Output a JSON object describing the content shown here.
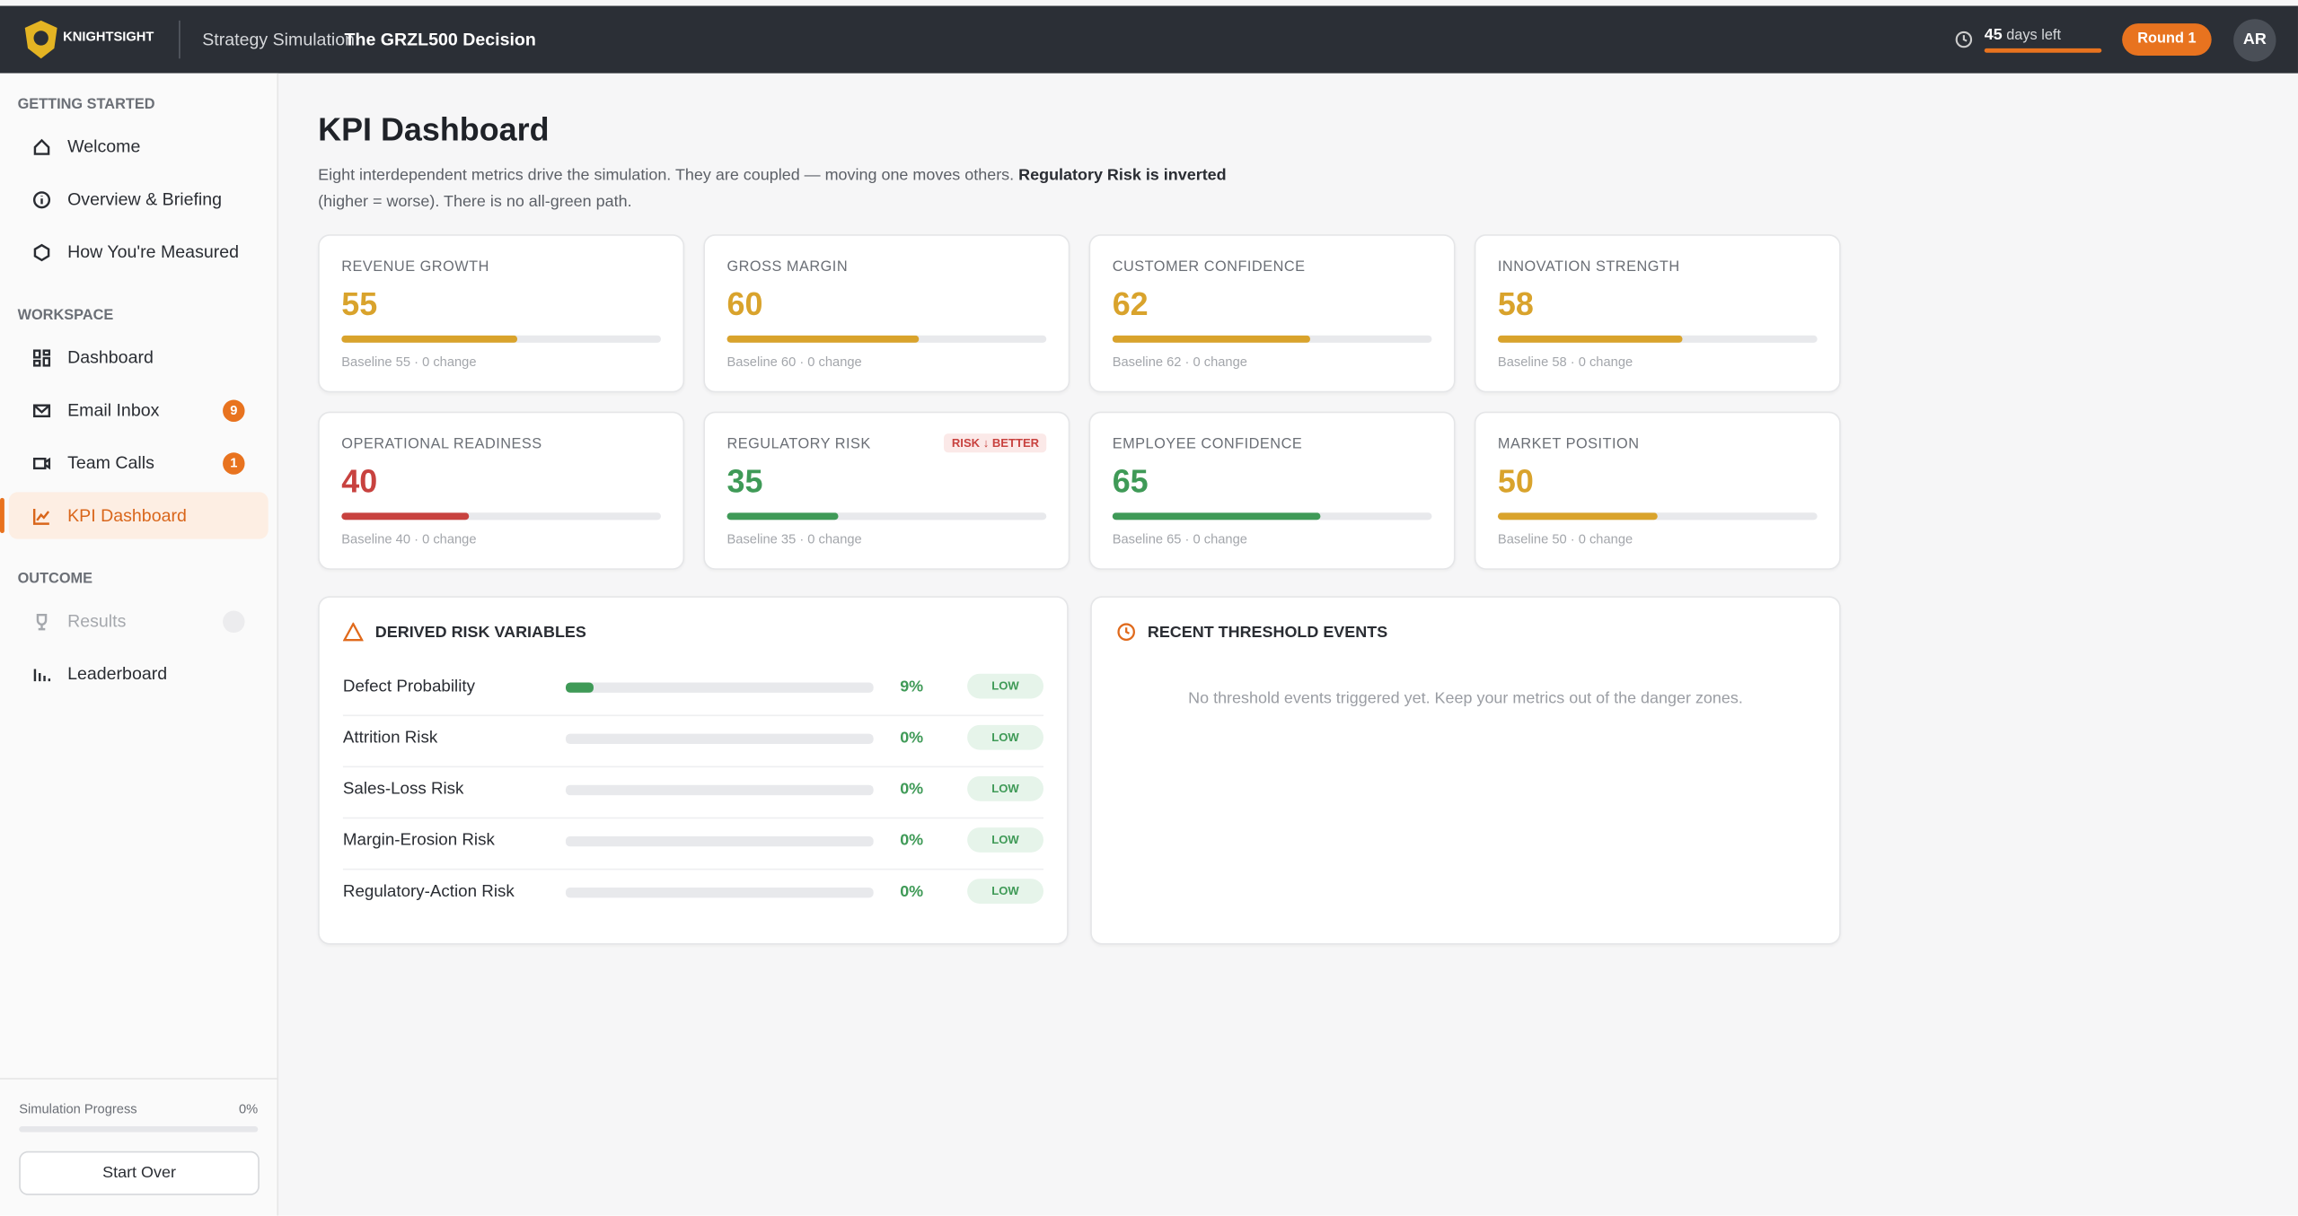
{
  "header": {
    "brand": "KNIGHTSIGHT",
    "title_prefix": "Strategy Simulation:",
    "title": "The GRZL500 Decision",
    "days": "45",
    "days_label": "days left",
    "round": "Round 1",
    "avatar": "AR"
  },
  "sidebar": {
    "sections": [
      {
        "heading": "GETTING STARTED",
        "items": [
          {
            "label": "Welcome"
          },
          {
            "label": "Overview & Briefing"
          },
          {
            "label": "How You're Measured"
          }
        ]
      },
      {
        "heading": "WORKSPACE",
        "items": [
          {
            "label": "Dashboard"
          },
          {
            "label": "Email Inbox",
            "badge": "9"
          },
          {
            "label": "Team Calls",
            "badge": "1"
          },
          {
            "label": "KPI Dashboard"
          }
        ]
      },
      {
        "heading": "OUTCOME",
        "items": [
          {
            "label": "Results"
          },
          {
            "label": "Leaderboard"
          }
        ]
      }
    ],
    "progress_label": "Simulation Progress",
    "progress": "0%",
    "start_over": "Start Over"
  },
  "main": {
    "title": "KPI Dashboard",
    "description": "Eight interdependent metrics drive the simulation. They are coupled — moving one moves others.",
    "description_bold": "Regulatory Risk is inverted",
    "description_end": "(higher = worse). There is no all-green path.",
    "kpis": [
      {
        "name": "REVENUE GROWTH",
        "value": 55,
        "baseline": "Baseline 55 · 0 change",
        "color": "#d9a32c"
      },
      {
        "name": "GROSS MARGIN",
        "value": 60,
        "baseline": "Baseline 60 · 0 change",
        "color": "#d9a32c"
      },
      {
        "name": "CUSTOMER CONFIDENCE",
        "value": 62,
        "baseline": "Baseline 62 · 0 change",
        "color": "#d9a32c"
      },
      {
        "name": "INNOVATION STRENGTH",
        "value": 58,
        "baseline": "Baseline 58 · 0 change",
        "color": "#d9a32c"
      },
      {
        "name": "OPERATIONAL READINESS",
        "value": 40,
        "baseline": "Baseline 40 · 0 change",
        "color": "#c8423f"
      },
      {
        "name": "REGULATORY RISK",
        "value": 35,
        "baseline": "Baseline 35 · 0 change",
        "color": "#3f9a57",
        "tag": "RISK ↓ BETTER"
      },
      {
        "name": "EMPLOYEE CONFIDENCE",
        "value": 65,
        "baseline": "Baseline 65 · 0 change",
        "color": "#3f9a57"
      },
      {
        "name": "MARKET POSITION",
        "value": 50,
        "baseline": "Baseline 50 · 0 change",
        "color": "#d9a32c"
      }
    ],
    "risk_title": "DERIVED RISK VARIABLES",
    "risks": [
      {
        "name": "Defect Probability",
        "value": 9,
        "label": "9%",
        "level": "LOW"
      },
      {
        "name": "Attrition Risk",
        "value": 0,
        "label": "0%",
        "level": "LOW"
      },
      {
        "name": "Sales-Loss Risk",
        "value": 0,
        "label": "0%",
        "level": "LOW"
      },
      {
        "name": "Margin-Erosion Risk",
        "value": 0,
        "label": "0%",
        "level": "LOW"
      },
      {
        "name": "Regulatory-Action Risk",
        "value": 0,
        "label": "0%",
        "level": "LOW"
      }
    ],
    "events_title": "RECENT THRESHOLD EVENTS",
    "events_empty": "No threshold events triggered yet. Keep your metrics out of the danger zones."
  }
}
